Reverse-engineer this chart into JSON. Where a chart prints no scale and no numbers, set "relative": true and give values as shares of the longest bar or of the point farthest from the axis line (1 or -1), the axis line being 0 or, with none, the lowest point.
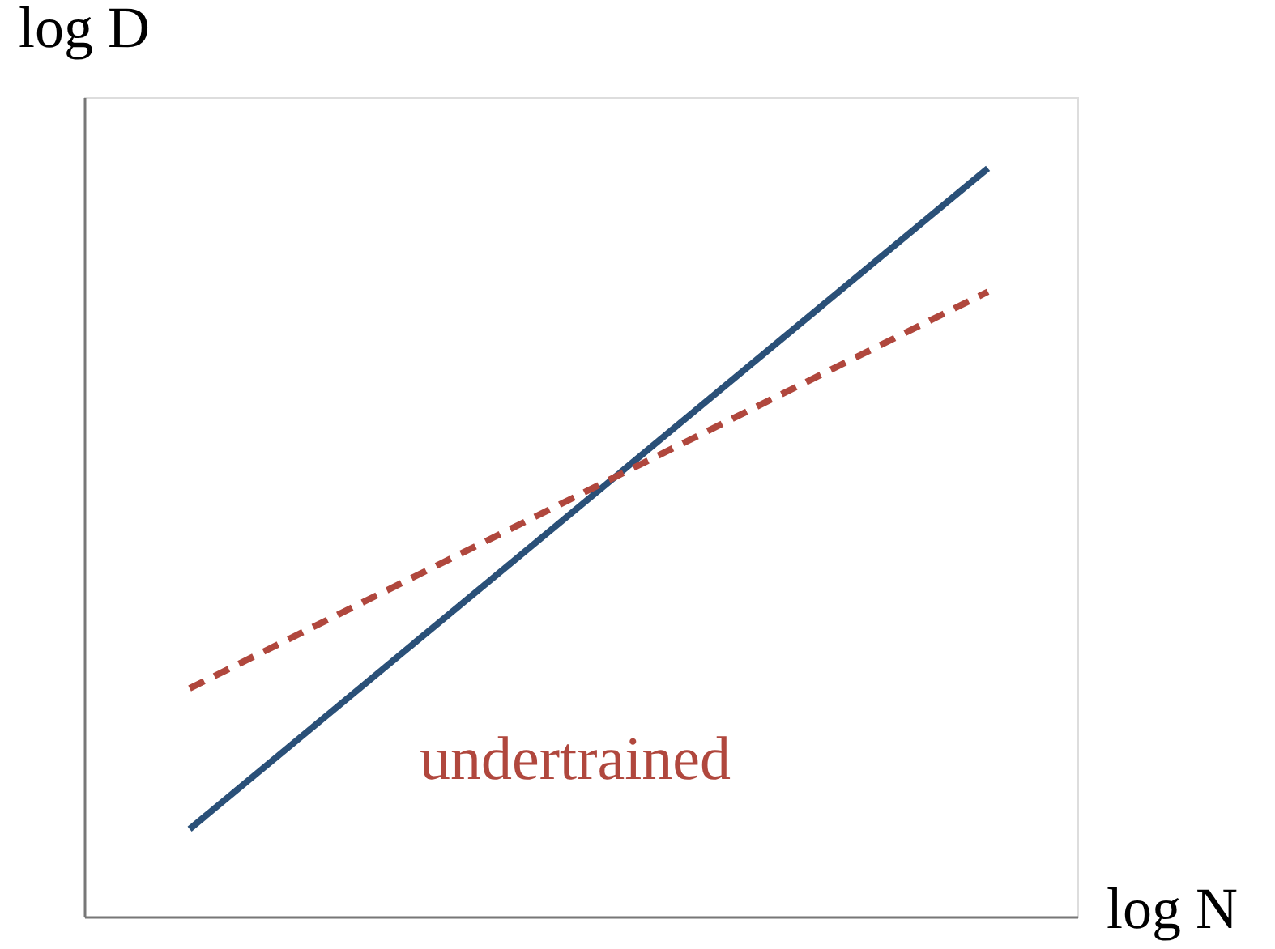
{
  "chart_data": {
    "type": "line",
    "relative": true,
    "xlabel": "log N",
    "ylabel": "log D",
    "categories": [
      null,
      null
    ],
    "series": [
      {
        "color": "#2a5078",
        "values": [
          0.117,
          1.0
        ],
        "line_style": "solid"
      },
      {
        "name": "undertrained",
        "color": "#b0473d",
        "values": [
          0.305,
          0.835
        ],
        "line_style": "dashed"
      }
    ],
    "legend": false,
    "grid": false,
    "marker": "none",
    "tick_labels": false
  }
}
